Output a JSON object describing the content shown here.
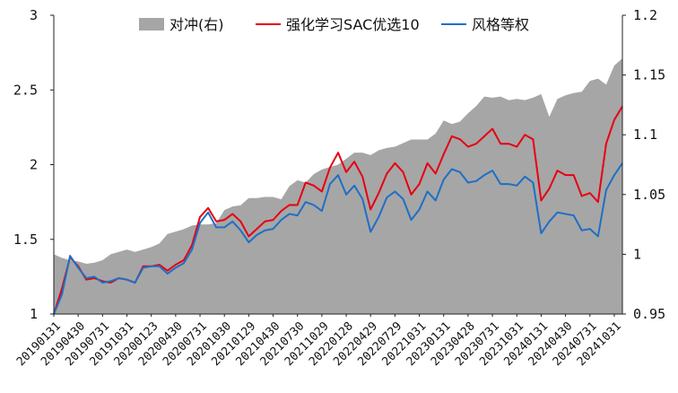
{
  "chart_data": {
    "type": "line",
    "title": "",
    "xlabel": "",
    "ylabel": "",
    "ylim": [
      1,
      3
    ],
    "y2lim": [
      0.95,
      1.2
    ],
    "y_ticks": [
      "1",
      "1.5",
      "2",
      "2.5",
      "3"
    ],
    "y2_ticks": [
      "0.95",
      "1",
      "1.05",
      "1.1",
      "1.15",
      "1.2"
    ],
    "grid": false,
    "legend_position": "top",
    "x_tick_labels": [
      "20190131",
      "20190430",
      "20190731",
      "20191031",
      "20200123",
      "20200430",
      "20200731",
      "20201030",
      "20210129",
      "20210430",
      "20210730",
      "20211029",
      "20220128",
      "20220429",
      "20220729",
      "20221031",
      "20230131",
      "20230428",
      "20230731",
      "20231031",
      "20240131",
      "20240430",
      "20240731",
      "20241031"
    ],
    "series": [
      {
        "name": "对冲(右)",
        "type": "area",
        "axis": "right",
        "color": "#a6a6a6",
        "values": [
          1.0,
          0.997,
          0.995,
          0.994,
          0.992,
          0.993,
          0.995,
          1.0,
          1.002,
          1.004,
          1.002,
          1.004,
          1.006,
          1.009,
          1.017,
          1.019,
          1.021,
          1.024,
          1.025,
          1.025,
          1.026,
          1.037,
          1.04,
          1.041,
          1.047,
          1.047,
          1.048,
          1.048,
          1.046,
          1.057,
          1.062,
          1.06,
          1.067,
          1.071,
          1.073,
          1.075,
          1.08,
          1.085,
          1.085,
          1.083,
          1.087,
          1.089,
          1.09,
          1.093,
          1.096,
          1.096,
          1.096,
          1.101,
          1.112,
          1.109,
          1.111,
          1.118,
          1.124,
          1.132,
          1.131,
          1.132,
          1.129,
          1.13,
          1.129,
          1.131,
          1.134,
          1.115,
          1.13,
          1.133,
          1.135,
          1.136,
          1.145,
          1.147,
          1.142,
          1.158,
          1.164
        ]
      },
      {
        "name": "强化学习SAC优选10",
        "type": "line",
        "axis": "left",
        "color": "#e60012",
        "values": [
          1.0,
          1.17,
          1.38,
          1.32,
          1.23,
          1.24,
          1.22,
          1.21,
          1.24,
          1.23,
          1.21,
          1.32,
          1.32,
          1.33,
          1.29,
          1.33,
          1.36,
          1.46,
          1.65,
          1.71,
          1.62,
          1.63,
          1.67,
          1.62,
          1.52,
          1.57,
          1.62,
          1.63,
          1.69,
          1.73,
          1.73,
          1.88,
          1.86,
          1.82,
          1.98,
          2.08,
          1.95,
          2.02,
          1.92,
          1.7,
          1.81,
          1.94,
          2.01,
          1.95,
          1.8,
          1.87,
          2.01,
          1.94,
          2.07,
          2.19,
          2.17,
          2.12,
          2.14,
          2.19,
          2.24,
          2.14,
          2.14,
          2.12,
          2.2,
          2.17,
          1.76,
          1.84,
          1.96,
          1.93,
          1.93,
          1.79,
          1.81,
          1.75,
          2.14,
          2.3,
          2.39
        ]
      },
      {
        "name": "风格等权",
        "type": "line",
        "axis": "left",
        "color": "#1f6fc5",
        "values": [
          1.0,
          1.13,
          1.39,
          1.31,
          1.24,
          1.25,
          1.21,
          1.22,
          1.24,
          1.23,
          1.21,
          1.31,
          1.32,
          1.32,
          1.27,
          1.31,
          1.34,
          1.43,
          1.61,
          1.68,
          1.58,
          1.58,
          1.62,
          1.56,
          1.48,
          1.53,
          1.56,
          1.57,
          1.63,
          1.67,
          1.66,
          1.75,
          1.73,
          1.69,
          1.87,
          1.93,
          1.8,
          1.86,
          1.77,
          1.55,
          1.65,
          1.78,
          1.82,
          1.77,
          1.63,
          1.7,
          1.82,
          1.76,
          1.9,
          1.97,
          1.95,
          1.88,
          1.89,
          1.93,
          1.96,
          1.87,
          1.87,
          1.86,
          1.92,
          1.88,
          1.54,
          1.62,
          1.68,
          1.67,
          1.66,
          1.56,
          1.57,
          1.52,
          1.83,
          1.93,
          2.01
        ]
      }
    ]
  }
}
